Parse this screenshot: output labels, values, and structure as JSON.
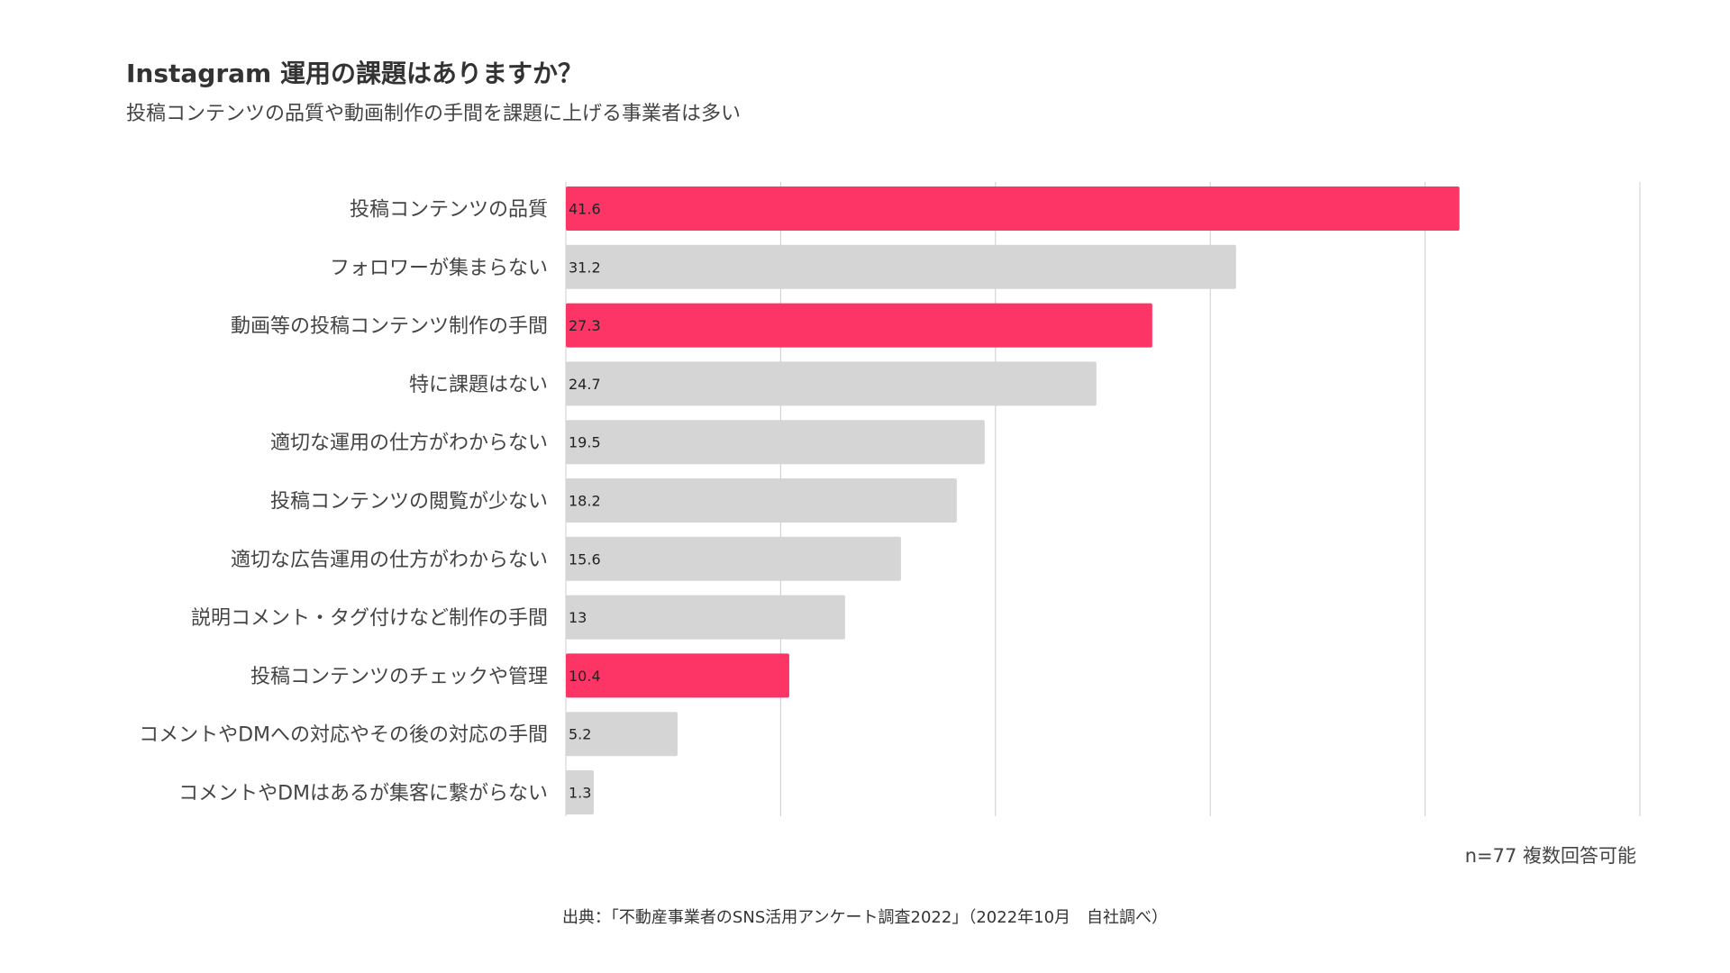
{
  "chart_data": {
    "type": "bar",
    "orientation": "horizontal",
    "title": "Instagram 運用の課題はありますか？",
    "subtitle": "投稿コンテンツの品質や動画制作の手間を課題に上げる事業者は多い",
    "categories": [
      "投稿コンテンツの品質",
      "フォロワーが集まらない",
      "動画等の投稿コンテンツ制作の手間",
      "特に課題はない",
      "適切な運用の仕方がわからない",
      "投稿コンテンツの閲覧が少ない",
      "適切な広告運用の仕方がわからない",
      "説明コメント・タグ付けなど制作の手間",
      "投稿コンテンツのチェックや管理",
      "コメントやDMへの対応やその後の対応の手間",
      "コメントやDMはあるが集客に繋がらない"
    ],
    "values": [
      41.6,
      31.2,
      27.3,
      24.7,
      19.5,
      18.2,
      15.6,
      13,
      10.4,
      5.2,
      1.3
    ],
    "value_labels": [
      "41.6",
      "31.2",
      "27.3",
      "24.7",
      "19.5",
      "18.2",
      "15.6",
      "13",
      "10.4",
      "5.2",
      "1.3"
    ],
    "highlighted": [
      true,
      false,
      true,
      false,
      false,
      false,
      false,
      false,
      true,
      false,
      false
    ],
    "xlim": [
      0,
      50
    ],
    "grid": true,
    "colors": {
      "highlight": "#fd3567",
      "default": "#d5d5d5",
      "grid": "#cccccc"
    }
  },
  "note": "n=77 複数回答可能",
  "source": "出典：「不動産事業者のSNS活用アンケート調査2022」（2022年10月　自社調べ）"
}
